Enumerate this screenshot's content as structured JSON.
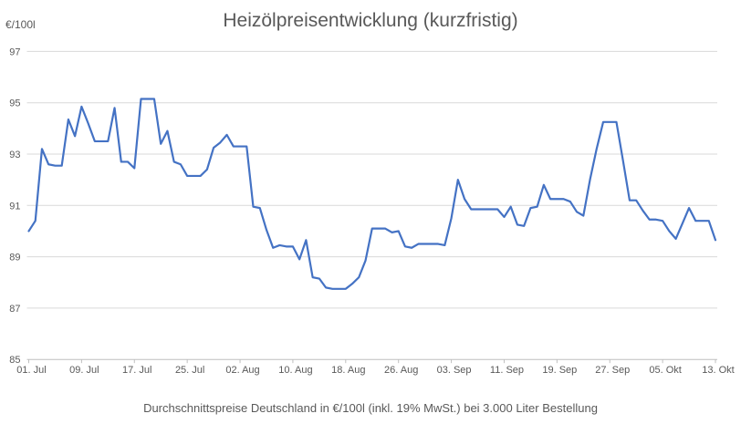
{
  "chart_data": {
    "type": "line",
    "title": "Heizölpreisentwicklung (kurzfristig)",
    "y_axis_label": "€/100l",
    "footnote": "Durchschnittspreise Deutschland in €/100l (inkl. 19% MwSt.) bei 3.000 Liter Bestellung",
    "ylim": [
      85,
      97
    ],
    "y_ticks": [
      97,
      95,
      93,
      91,
      89,
      87,
      85
    ],
    "x_tick_labels": [
      "01. Jul",
      "09. Jul",
      "17. Jul",
      "25. Jul",
      "02. Aug",
      "10. Aug",
      "18. Aug",
      "26. Aug",
      "03. Sep",
      "11. Sep",
      "19. Sep",
      "27. Sep",
      "05. Okt",
      "13. Okt"
    ],
    "x_tick_interval_days": 8,
    "grid": true,
    "legend_position": "none",
    "series": [
      {
        "color": "#4472C4",
        "values": [
          90.0,
          90.4,
          93.2,
          92.6,
          92.55,
          92.55,
          94.35,
          93.7,
          94.85,
          94.2,
          93.5,
          93.5,
          93.5,
          94.8,
          92.7,
          92.7,
          92.45,
          95.15,
          95.15,
          95.15,
          93.4,
          93.9,
          92.7,
          92.6,
          92.15,
          92.15,
          92.15,
          92.4,
          93.25,
          93.45,
          93.75,
          93.3,
          93.3,
          93.3,
          90.95,
          90.9,
          90.05,
          89.35,
          89.45,
          89.4,
          89.4,
          88.9,
          89.65,
          88.2,
          88.15,
          87.8,
          87.75,
          87.75,
          87.75,
          87.95,
          88.2,
          88.85,
          90.1,
          90.1,
          90.1,
          89.95,
          90.0,
          89.4,
          89.35,
          89.5,
          89.5,
          89.5,
          89.5,
          89.45,
          90.5,
          92.0,
          91.25,
          90.85,
          90.85,
          90.85,
          90.85,
          90.85,
          90.55,
          90.95,
          90.25,
          90.2,
          90.9,
          90.95,
          91.8,
          91.25,
          91.25,
          91.25,
          91.15,
          90.75,
          90.6,
          92.0,
          93.2,
          94.25,
          94.25,
          94.25,
          92.75,
          91.2,
          91.2,
          90.8,
          90.45,
          90.45,
          90.4,
          90.0,
          89.7,
          90.3,
          90.9,
          90.4,
          90.4,
          90.4,
          89.65
        ]
      }
    ],
    "colors": {
      "line": "#4472C4",
      "title_text": "#595959",
      "axis_text": "#595959",
      "gridline": "#D9D9D9",
      "axis_line": "#BFBFBF"
    }
  }
}
